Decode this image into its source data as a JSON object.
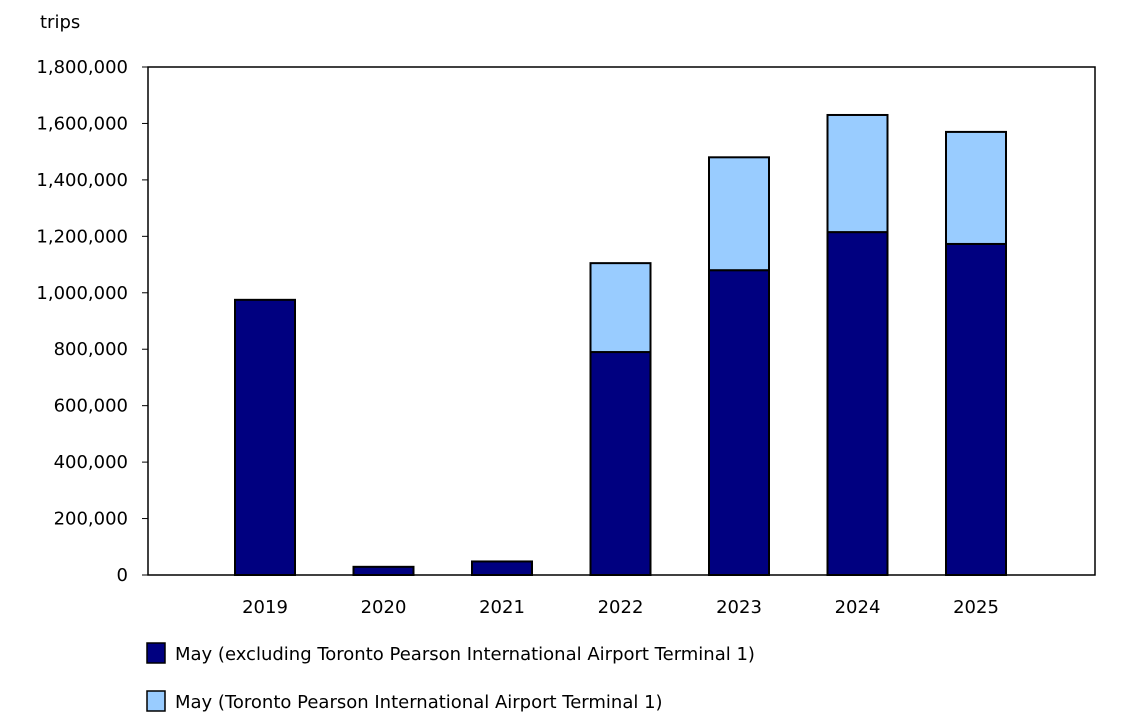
{
  "chart_data": {
    "type": "bar",
    "stacked": true,
    "ylabel": "trips",
    "xlabel": "",
    "ylim": [
      0,
      1800000
    ],
    "yticks": [
      0,
      200000,
      400000,
      600000,
      800000,
      1000000,
      1200000,
      1400000,
      1600000,
      1800000
    ],
    "ytick_labels": [
      "0",
      "200,000",
      "400,000",
      "600,000",
      "800,000",
      "1,000,000",
      "1,200,000",
      "1,400,000",
      "1,600,000",
      "1,800,000"
    ],
    "categories": [
      "2019",
      "2020",
      "2021",
      "2022",
      "2023",
      "2024",
      "2025"
    ],
    "grid": false,
    "legend_placement": "bottom",
    "series": [
      {
        "name": "May (excluding Toronto Pearson International Airport Terminal 1)",
        "color": "#000080",
        "values": [
          975000,
          29000,
          48000,
          790000,
          1080000,
          1215000,
          1173000
        ]
      },
      {
        "name": "May (Toronto Pearson International Airport Terminal 1)",
        "color": "#99ccff",
        "values": [
          null,
          null,
          null,
          315000,
          400000,
          415000,
          397000
        ]
      }
    ]
  }
}
